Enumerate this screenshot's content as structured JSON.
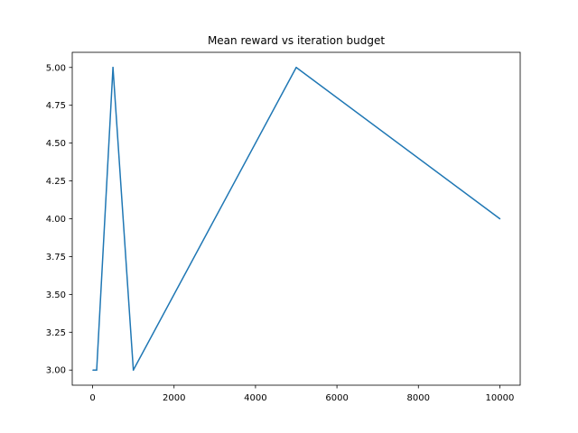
{
  "chart_data": {
    "type": "line",
    "title": "Mean reward vs iteration budget",
    "xlabel": "",
    "ylabel": "",
    "xlim": [
      -500,
      10500
    ],
    "ylim": [
      2.9,
      5.1
    ],
    "x_ticks": [
      0,
      2000,
      4000,
      6000,
      8000,
      10000
    ],
    "x_tick_labels": [
      "0",
      "2000",
      "4000",
      "6000",
      "8000",
      "10000"
    ],
    "y_ticks": [
      3.0,
      3.25,
      3.5,
      3.75,
      4.0,
      4.25,
      4.5,
      4.75,
      5.0
    ],
    "y_tick_labels": [
      "3.00",
      "3.25",
      "3.50",
      "3.75",
      "4.00",
      "4.25",
      "4.50",
      "4.75",
      "5.00"
    ],
    "grid": false,
    "series": [
      {
        "x": [
          10,
          100,
          500,
          1000,
          5000,
          10000
        ],
        "y": [
          3.0,
          3.0,
          5.0,
          3.0,
          5.0,
          4.0
        ],
        "color": "#1f77b4"
      }
    ]
  }
}
